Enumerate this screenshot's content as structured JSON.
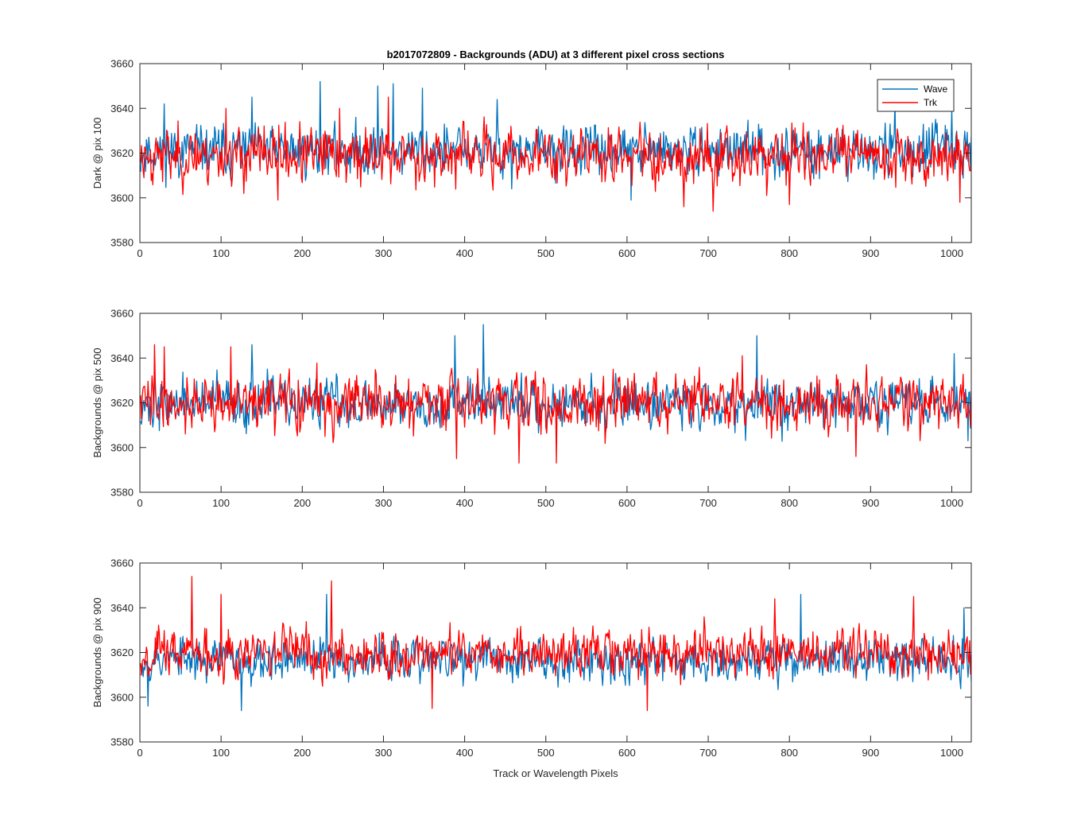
{
  "figure": {
    "title": "b2017072809 - Backgrounds (ADU) at 3 different pixel cross sections",
    "xlabel": "Track or Wavelength Pixels"
  },
  "colors": {
    "wave": "#0072BD",
    "trk": "#FF0000",
    "axes": "#262626"
  },
  "legend": {
    "items": [
      "Wave",
      "Trk"
    ],
    "placement": "top-right"
  },
  "chart_data": [
    {
      "type": "line",
      "ylabel": "Dark @ pix 100",
      "xlim": [
        0,
        1024
      ],
      "ylim": [
        3580,
        3660
      ],
      "xticks": [
        0,
        100,
        200,
        300,
        400,
        500,
        600,
        700,
        800,
        900,
        1000
      ],
      "yticks": [
        3580,
        3600,
        3620,
        3640,
        3660
      ],
      "grid": false,
      "series": [
        {
          "name": "Wave",
          "mean": 3621,
          "noise": 7,
          "seed": 11,
          "spikes": [
            [
              30,
              3642
            ],
            [
              138,
              3645
            ],
            [
              222,
              3652
            ],
            [
              293,
              3650
            ],
            [
              312,
              3651
            ],
            [
              348,
              3649
            ],
            [
              440,
              3644
            ],
            [
              458,
              3604
            ],
            [
              605,
              3599
            ],
            [
              930,
              3643
            ],
            [
              1000,
              3640
            ]
          ]
        },
        {
          "name": "Trk",
          "mean": 3619,
          "noise": 8,
          "seed": 23,
          "spikes": [
            [
              106,
              3640
            ],
            [
              170,
              3599
            ],
            [
              246,
              3640
            ],
            [
              306,
              3645
            ],
            [
              670,
              3596
            ],
            [
              706,
              3594
            ],
            [
              772,
              3601
            ],
            [
              800,
              3597
            ],
            [
              1010,
              3598
            ]
          ]
        }
      ]
    },
    {
      "type": "line",
      "ylabel": "Backgrounds @ pix 500",
      "xlim": [
        0,
        1024
      ],
      "ylim": [
        3580,
        3660
      ],
      "xticks": [
        0,
        100,
        200,
        300,
        400,
        500,
        600,
        700,
        800,
        900,
        1000
      ],
      "yticks": [
        3580,
        3600,
        3620,
        3640,
        3660
      ],
      "grid": false,
      "series": [
        {
          "name": "Wave",
          "mean": 3620,
          "noise": 7,
          "seed": 37,
          "spikes": [
            [
              138,
              3646
            ],
            [
              388,
              3650
            ],
            [
              423,
              3655
            ],
            [
              760,
              3650
            ],
            [
              1003,
              3642
            ],
            [
              1020,
              3603
            ]
          ]
        },
        {
          "name": "Trk",
          "mean": 3620,
          "noise": 8,
          "seed": 41,
          "spikes": [
            [
              18,
              3646
            ],
            [
              30,
              3645
            ],
            [
              112,
              3645
            ],
            [
              390,
              3595
            ],
            [
              467,
              3593
            ],
            [
              513,
              3593
            ],
            [
              742,
              3641
            ],
            [
              882,
              3596
            ]
          ]
        }
      ]
    },
    {
      "type": "line",
      "ylabel": "Backgrounds @ pix 900",
      "xlim": [
        0,
        1024
      ],
      "ylim": [
        3580,
        3660
      ],
      "xticks": [
        0,
        100,
        200,
        300,
        400,
        500,
        600,
        700,
        800,
        900,
        1000
      ],
      "yticks": [
        3580,
        3600,
        3620,
        3640,
        3660
      ],
      "grid": false,
      "series": [
        {
          "name": "Wave",
          "mean": 3617,
          "noise": 6,
          "seed": 53,
          "spikes": [
            [
              10,
              3596
            ],
            [
              125,
              3594
            ],
            [
              230,
              3646
            ],
            [
              814,
              3646
            ],
            [
              1015,
              3640
            ]
          ]
        },
        {
          "name": "Trk",
          "mean": 3620,
          "noise": 7,
          "seed": 67,
          "spikes": [
            [
              64,
              3654
            ],
            [
              100,
              3646
            ],
            [
              236,
              3652
            ],
            [
              360,
              3595
            ],
            [
              625,
              3594
            ],
            [
              782,
              3644
            ],
            [
              953,
              3645
            ]
          ]
        }
      ]
    }
  ]
}
